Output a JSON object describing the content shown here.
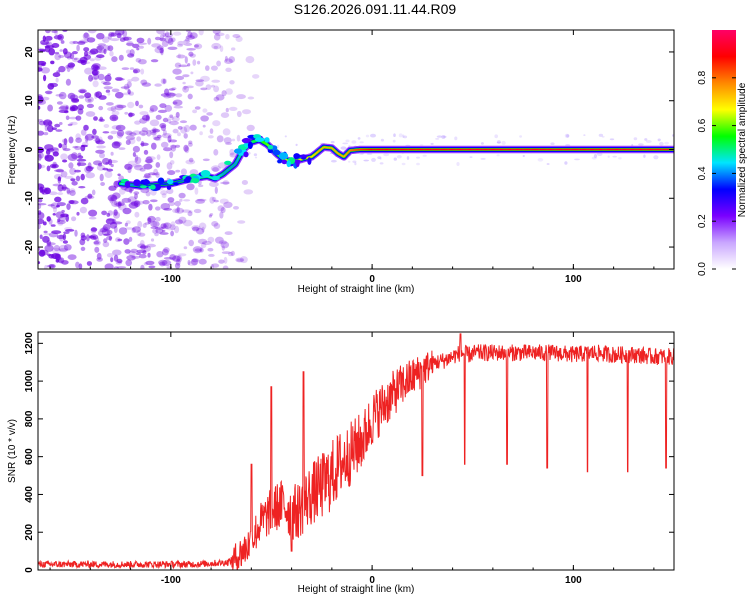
{
  "title": "S126.2026.091.11.44.R09",
  "colors": {
    "snr_line": "#ee2222",
    "scatter_base": "#6a00e0",
    "frame": "#000000"
  },
  "chart_data": [
    {
      "type": "heatmap",
      "ylabel": "Frequency (Hz)",
      "xlabel": "Height of straight line (km)",
      "xlim": [
        -166,
        150
      ],
      "ylim": [
        -24.5,
        24.5
      ],
      "x_ticks": [
        -100,
        0,
        100
      ],
      "y_ticks": [
        -20,
        -10,
        0,
        10,
        20
      ],
      "grid": false,
      "colorbar": {
        "label": "Normalized spectral amplitude",
        "range": [
          0,
          1
        ],
        "ticks": [
          "0.0",
          "0.2",
          "0.4",
          "0.6",
          "0.8"
        ],
        "colormap": [
          "#ffffff",
          "#c9a6ff",
          "#7a00ff",
          "#0000ff",
          "#00e5ff",
          "#00ff00",
          "#ffff00",
          "#ff8800",
          "#ff0000",
          "#ff0066"
        ]
      },
      "ridge": [
        [
          -125,
          -7,
          0.45
        ],
        [
          -115,
          -7.5,
          0.35
        ],
        [
          -100,
          -7,
          0.35
        ],
        [
          -90,
          -6,
          0.4
        ],
        [
          -82,
          -5.5,
          0.45
        ],
        [
          -78,
          -6,
          0.45
        ],
        [
          -74,
          -5,
          0.4
        ],
        [
          -68,
          -3,
          0.4
        ],
        [
          -64,
          0,
          0.45
        ],
        [
          -60,
          1.5,
          0.5
        ],
        [
          -56,
          2,
          0.55
        ],
        [
          -52,
          1,
          0.6
        ],
        [
          -47,
          -1,
          0.6
        ],
        [
          -44,
          -2,
          0.65
        ],
        [
          -40,
          -2.5,
          0.65
        ],
        [
          -35,
          -2,
          0.7
        ],
        [
          -30,
          -1.5,
          0.7
        ],
        [
          -27,
          -0.5,
          0.75
        ],
        [
          -24,
          0.5,
          0.75
        ],
        [
          -20,
          0.3,
          0.75
        ],
        [
          -17,
          -0.8,
          0.75
        ],
        [
          -14,
          -1.5,
          0.75
        ],
        [
          -11,
          -0.2,
          0.8
        ],
        [
          -6,
          0,
          0.85
        ],
        [
          0,
          0,
          0.9
        ],
        [
          50,
          0,
          0.92
        ],
        [
          100,
          0,
          0.92
        ],
        [
          150,
          0,
          0.92
        ]
      ]
    },
    {
      "type": "line",
      "ylabel": "SNR (10 * v/v)",
      "xlabel": "Height of straight line (km)",
      "xlim": [
        -166,
        150
      ],
      "ylim": [
        0,
        1260
      ],
      "x_ticks": [
        -100,
        0,
        100
      ],
      "y_ticks": [
        0,
        200,
        400,
        600,
        800,
        1000,
        1200
      ],
      "grid": false,
      "x": [
        -166,
        -150,
        -130,
        -110,
        -90,
        -80,
        -72,
        -68,
        -65,
        -60,
        -56,
        -52,
        -48,
        -44,
        -40,
        -36,
        -32,
        -28,
        -24,
        -20,
        -16,
        -12,
        -8,
        -4,
        0,
        4,
        8,
        12,
        16,
        20,
        24,
        28,
        32,
        36,
        40,
        44,
        48,
        52,
        56,
        60,
        70,
        80,
        90,
        100,
        110,
        120,
        130,
        140,
        150
      ],
      "values": [
        30,
        30,
        30,
        30,
        30,
        35,
        40,
        60,
        90,
        150,
        240,
        290,
        330,
        350,
        300,
        320,
        380,
        420,
        450,
        500,
        560,
        600,
        650,
        700,
        800,
        850,
        900,
        950,
        990,
        1020,
        1050,
        1080,
        1100,
        1110,
        1130,
        1150,
        1140,
        1150,
        1150,
        1150,
        1150,
        1150,
        1150,
        1140,
        1150,
        1140,
        1140,
        1130,
        1130
      ],
      "dips": [
        [
          -40,
          100
        ],
        [
          25,
          500
        ],
        [
          46,
          560
        ],
        [
          67,
          560
        ],
        [
          87,
          540
        ],
        [
          107,
          520
        ],
        [
          127,
          520
        ],
        [
          146,
          540
        ]
      ],
      "spikes": [
        [
          -34,
          1050
        ],
        [
          -50,
          970
        ],
        [
          -60,
          560
        ],
        [
          44,
          1250
        ]
      ]
    }
  ]
}
